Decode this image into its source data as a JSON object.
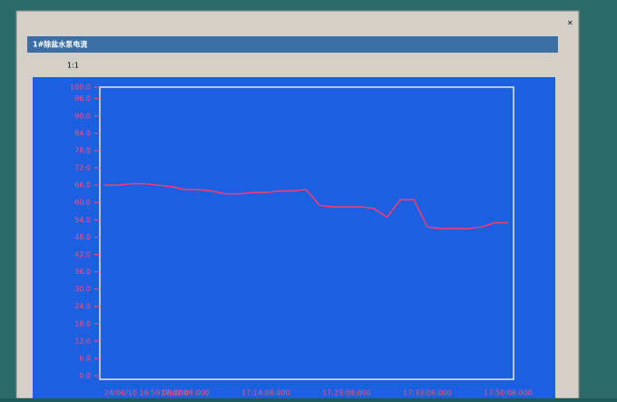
{
  "window": {
    "title": "1#除盐水泵电流",
    "zoom": "1:1"
  },
  "chart_data": {
    "type": "line",
    "x_tick_labels": [
      "24/06/10 16:59:08.000",
      "17:02:08.000",
      "17:14:08.000",
      "17:23:08.000",
      "17:33:08.000",
      "17:50:08.000"
    ],
    "series": [
      {
        "color": "#ff3b6b",
        "values": [
          66,
          66,
          66.5,
          66.5,
          66,
          65.5,
          64.5,
          64.5,
          64,
          63,
          63,
          63.5,
          63.5,
          64,
          64,
          64.5,
          59,
          58.5,
          58.5,
          58.5,
          58,
          55,
          61,
          61,
          51.5,
          51,
          51,
          51,
          51.5,
          53,
          53
        ]
      }
    ],
    "ylim": [
      0,
      100
    ],
    "yticks": [
      {
        "value": 0,
        "label": "0.0"
      },
      {
        "value": 6,
        "label": "6.0"
      },
      {
        "value": 12,
        "label": "12.0"
      },
      {
        "value": 18,
        "label": "18.0"
      },
      {
        "value": 24,
        "label": "24.0"
      },
      {
        "value": 30,
        "label": "30.0"
      },
      {
        "value": 36,
        "label": "36.0"
      },
      {
        "value": 42,
        "label": "42.0"
      },
      {
        "value": 48,
        "label": "48.0"
      },
      {
        "value": 54,
        "label": "54.0"
      },
      {
        "value": 60,
        "label": "60.0"
      },
      {
        "value": 66,
        "label": "66.0"
      },
      {
        "value": 72,
        "label": "72.0"
      },
      {
        "value": 78,
        "label": "78.0"
      },
      {
        "value": 84,
        "label": "84.0"
      },
      {
        "value": 90,
        "label": "90.0"
      },
      {
        "value": 96,
        "label": "96.0"
      },
      {
        "value": 100,
        "label": "100.0"
      }
    ]
  }
}
